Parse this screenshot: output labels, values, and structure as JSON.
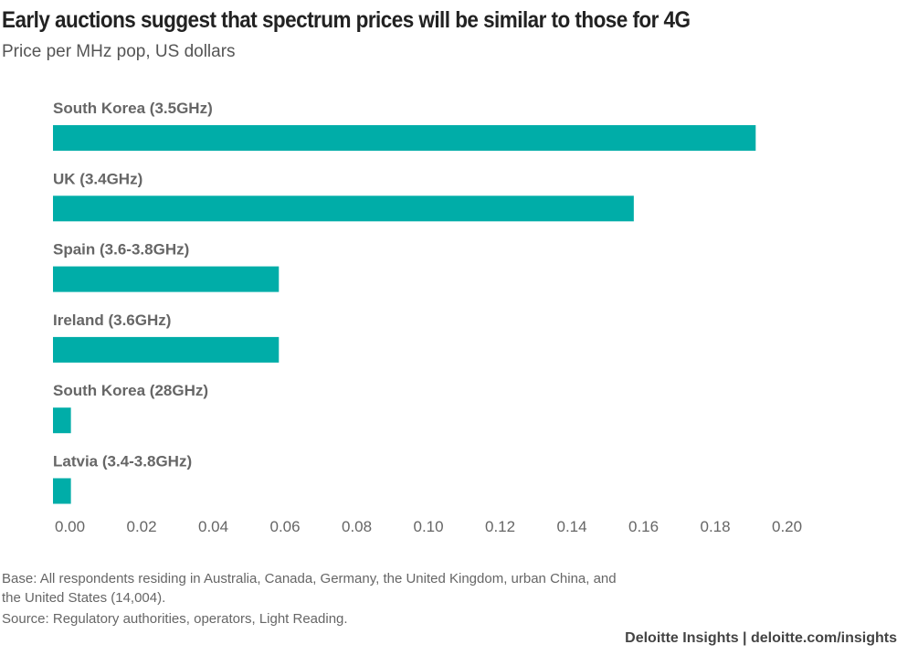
{
  "chart_data": {
    "type": "bar",
    "orientation": "horizontal",
    "title": "Early auctions suggest that spectrum prices will be similar to those for 4G",
    "subtitle": "Price per MHz pop, US dollars",
    "categories": [
      "South Korea (3.5GHz)",
      "UK (3.4GHz)",
      "Spain (3.6-3.8GHz)",
      "Ireland (3.6GHz)",
      "South Korea (28GHz)",
      "Latvia (3.4-3.8GHz)"
    ],
    "values": [
      0.196,
      0.162,
      0.063,
      0.063,
      0.005,
      0.005
    ],
    "xlim": [
      0,
      0.2
    ],
    "ticks": [
      "0.00",
      "0.02",
      "0.04",
      "0.06",
      "0.08",
      "0.10",
      "0.12",
      "0.14",
      "0.16",
      "0.18",
      "0.20"
    ],
    "grid": false,
    "bar_color": "#00ADA8"
  },
  "notes": {
    "base_line1": "Base: All respondents residing in Australia, Canada, Germany, the United Kingdom, urban China, and",
    "base_line2": "the United States (14,004).",
    "source": "Source: Regulatory authorities, operators, Light Reading."
  },
  "footer": "Deloitte Insights | deloitte.com/insights"
}
